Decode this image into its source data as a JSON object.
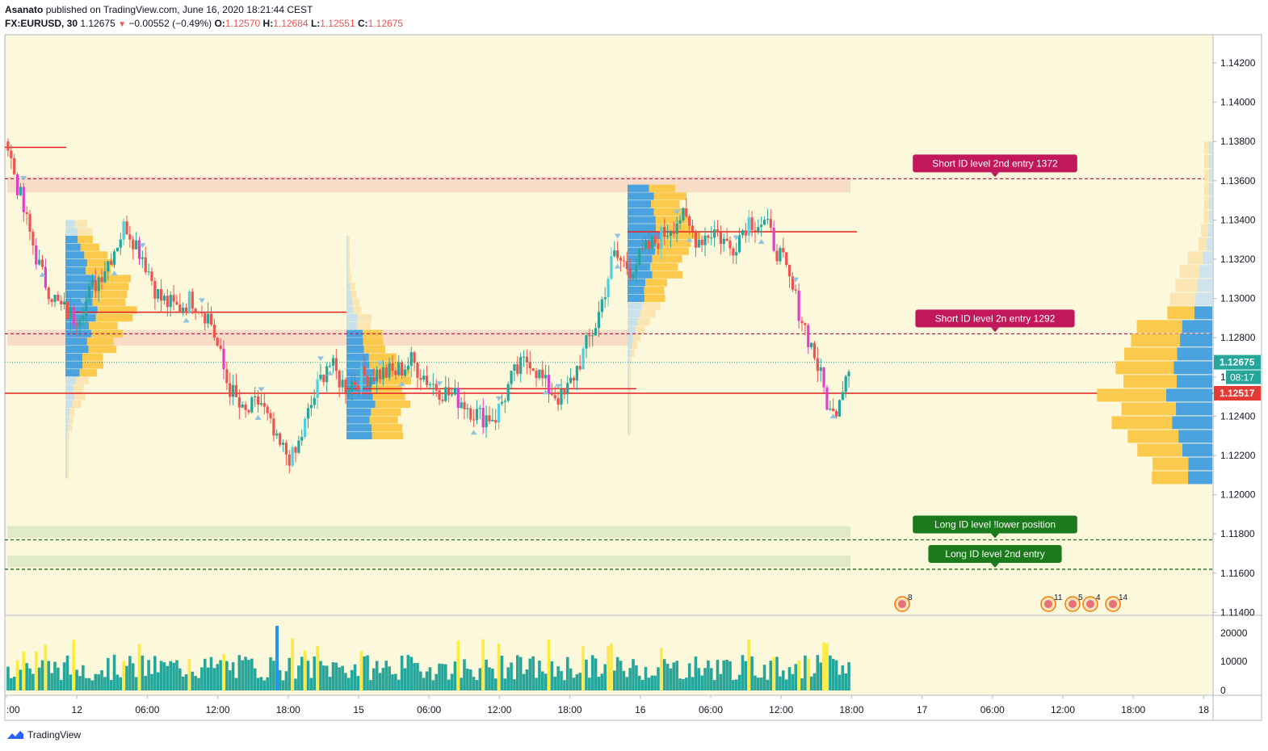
{
  "header": {
    "author": "Asanato",
    "published_text": "published on TradingView.com, June 16, 2020 18:21:44 CEST",
    "symbol": "FX:EURUSD, 30",
    "last": "1.12675",
    "change": "−0.00552 (−0.49%)",
    "o_label": "O:",
    "o_value": "1.12570",
    "h_label": "H:",
    "h_value": "1.12684",
    "l_label": "L:",
    "l_value": "1.12551",
    "c_label": "C:",
    "c_value": "1.12675"
  },
  "footer": {
    "brand": "TradingView"
  },
  "colors": {
    "background": "#fbf8dc",
    "up": "#26a69a",
    "down": "#ef5350",
    "magenta": "#e040c8",
    "cyan_up": "#4dd0e1",
    "profile_blue": "#4aa3df",
    "profile_orange": "#fbc94b",
    "short_label": "#c2185b",
    "long_label": "#1b7a1b",
    "level_red": "#e91e1e"
  },
  "chart_data": {
    "type": "candlestick",
    "symbol": "FX:EURUSD",
    "interval": "30",
    "y_range": [
      1.1138,
      1.1432
    ],
    "price_ticks": [
      "1.14200",
      "1.14000",
      "1.13800",
      "1.13600",
      "1.13400",
      "1.13200",
      "1.13000",
      "1.12800",
      "1.12600",
      "1.12400",
      "1.12200",
      "1.12000",
      "1.11800",
      "1.11600",
      "1.11400"
    ],
    "time_ticks": [
      ":00",
      "12",
      "06:00",
      "12:00",
      "18:00",
      "15",
      "06:00",
      "12:00",
      "18:00",
      "16",
      "06:00",
      "12:00",
      "18:00",
      "17",
      "06:00",
      "12:00",
      "18:00",
      "18"
    ],
    "volume_range": [
      0,
      24000
    ],
    "volume_ticks": [
      "20000",
      "10000",
      "0"
    ],
    "current_price": "1.12675",
    "countdown": "08:17",
    "poc_price": "1.12517",
    "levels": [
      {
        "name": "Short ID level 2nd entry 1372",
        "price": 1.1361,
        "kind": "short"
      },
      {
        "name": "Short ID level 2n entry 1292",
        "price": 1.1282,
        "kind": "short"
      },
      {
        "name": "Long ID level !lower position",
        "price": 1.1177,
        "kind": "long"
      },
      {
        "name": "Long ID level 2nd entry",
        "price": 1.1162,
        "kind": "long"
      }
    ],
    "zones": [
      {
        "kind": "short",
        "from": 1.1354,
        "to": 1.1362
      },
      {
        "kind": "short",
        "from": 1.1276,
        "to": 1.1284
      },
      {
        "kind": "long",
        "from": 1.1178,
        "to": 1.1184
      },
      {
        "kind": "long",
        "from": 1.1163,
        "to": 1.1169
      }
    ],
    "event_badges": [
      "8",
      "11",
      "5",
      "4",
      "14"
    ],
    "close_anchors": [
      1.1377,
      1.1342,
      1.1312,
      1.1296,
      1.129,
      1.1305,
      1.132,
      1.1338,
      1.1322,
      1.13,
      1.1295,
      1.13,
      1.129,
      1.1258,
      1.124,
      1.1248,
      1.1225,
      1.1218,
      1.1245,
      1.1268,
      1.1255,
      1.126,
      1.1262,
      1.1262,
      1.1268,
      1.1258,
      1.1252,
      1.1248,
      1.124,
      1.124,
      1.126,
      1.127,
      1.1255,
      1.1248,
      1.1268,
      1.1288,
      1.1322,
      1.1315,
      1.1325,
      1.1333,
      1.1342,
      1.133,
      1.1335,
      1.1325,
      1.134,
      1.1338,
      1.132,
      1.1295,
      1.127,
      1.1238,
      1.1268
    ]
  }
}
